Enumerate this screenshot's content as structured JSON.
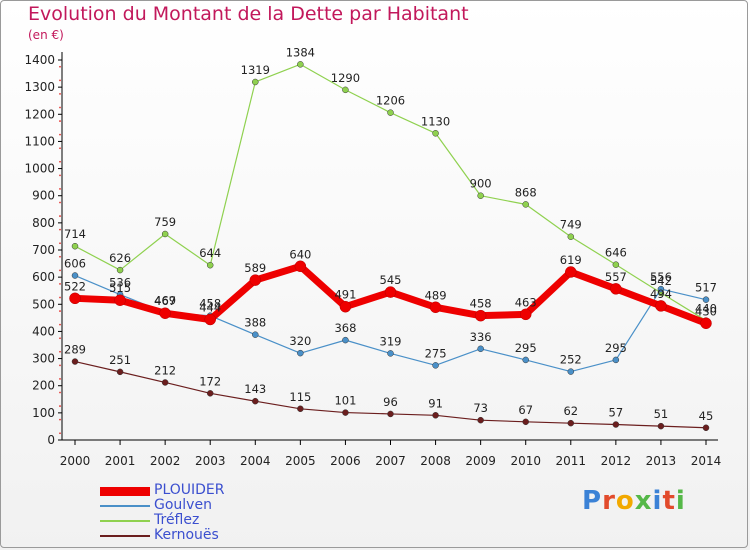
{
  "title": "Evolution du Montant de la Dette par Habitant",
  "unit": "(en €)",
  "brand": {
    "text": "Proxiti",
    "letter_colors": [
      "#3b82d6",
      "#e24b2c",
      "#f2a900",
      "#55b848",
      "#3b82d6",
      "#e24b2c",
      "#55b848"
    ]
  },
  "chart_data": {
    "type": "line",
    "title": "Evolution du Montant de la Dette par Habitant",
    "ylabel": "(en €)",
    "xlabel": "",
    "x": [
      "2000",
      "2001",
      "2002",
      "2003",
      "2004",
      "2005",
      "2006",
      "2007",
      "2008",
      "2009",
      "2010",
      "2011",
      "2012",
      "2013",
      "2014"
    ],
    "ylim": [
      0,
      1400
    ],
    "yticks": [
      0,
      100,
      200,
      300,
      400,
      500,
      600,
      700,
      800,
      900,
      1000,
      1100,
      1200,
      1300,
      1400
    ],
    "grid": false,
    "legend_position": "bottom-left",
    "series": [
      {
        "name": "PLOUIDER",
        "color": "#ee0000",
        "values": [
          522,
          515,
          467,
          444,
          589,
          640,
          491,
          545,
          489,
          458,
          463,
          619,
          557,
          494,
          430
        ]
      },
      {
        "name": "Goulven",
        "color": "#4a90c8",
        "values": [
          606,
          536,
          469,
          458,
          388,
          320,
          368,
          319,
          275,
          336,
          295,
          252,
          295,
          556,
          517
        ]
      },
      {
        "name": "Tréflez",
        "color": "#8fd14f",
        "values": [
          714,
          626,
          759,
          644,
          1319,
          1384,
          1290,
          1206,
          1130,
          900,
          868,
          749,
          646,
          542,
          440
        ]
      },
      {
        "name": "Kernouës",
        "color": "#6b1e1e",
        "values": [
          289,
          251,
          212,
          172,
          143,
          115,
          101,
          96,
          91,
          73,
          67,
          62,
          57,
          51,
          45
        ]
      }
    ]
  }
}
